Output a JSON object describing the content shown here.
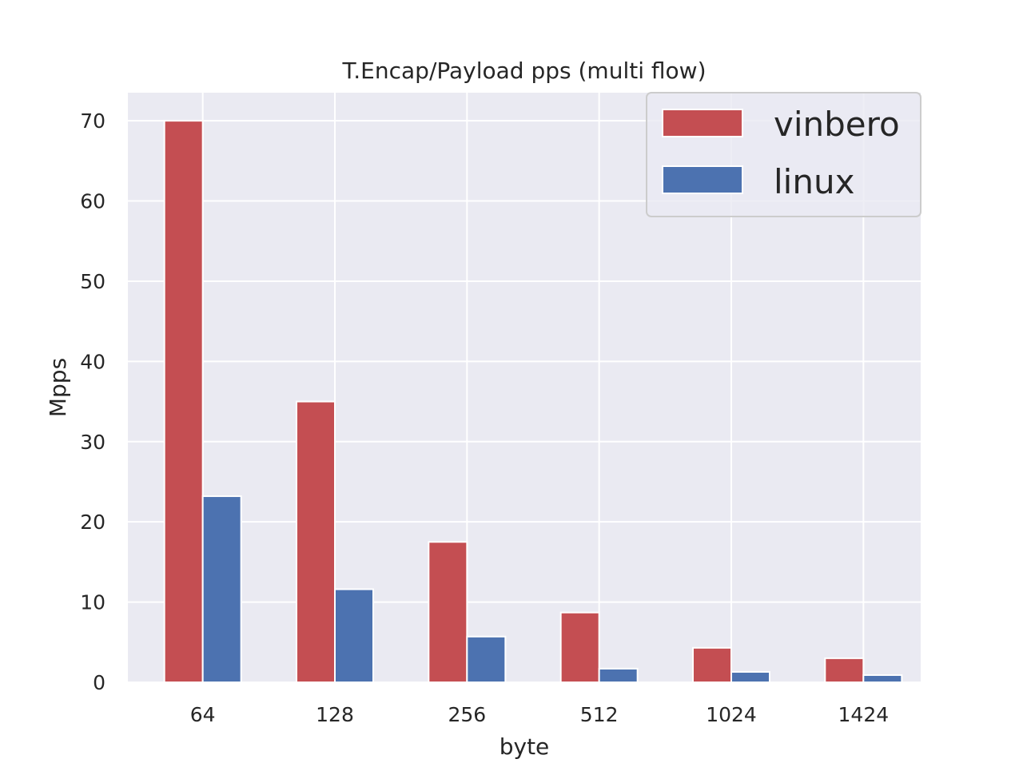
{
  "chart_data": {
    "type": "bar",
    "title": "T.Encap/Payload pps (multi flow)",
    "xlabel": "byte",
    "ylabel": "Mpps",
    "categories": [
      "64",
      "128",
      "256",
      "512",
      "1024",
      "1424"
    ],
    "series": [
      {
        "name": "vinbero",
        "color": "#c44e52",
        "values": [
          70.0,
          35.0,
          17.5,
          8.7,
          4.3,
          3.0
        ]
      },
      {
        "name": "linux",
        "color": "#4c72b0",
        "values": [
          23.2,
          11.6,
          5.7,
          1.7,
          1.3,
          0.9
        ]
      }
    ],
    "ylim": [
      0,
      73.5
    ],
    "yticks": [
      "0",
      "10",
      "20",
      "30",
      "40",
      "50",
      "60",
      "70"
    ],
    "grid": true,
    "legend_position": "top-right",
    "background_color": "#eaeaf2"
  }
}
